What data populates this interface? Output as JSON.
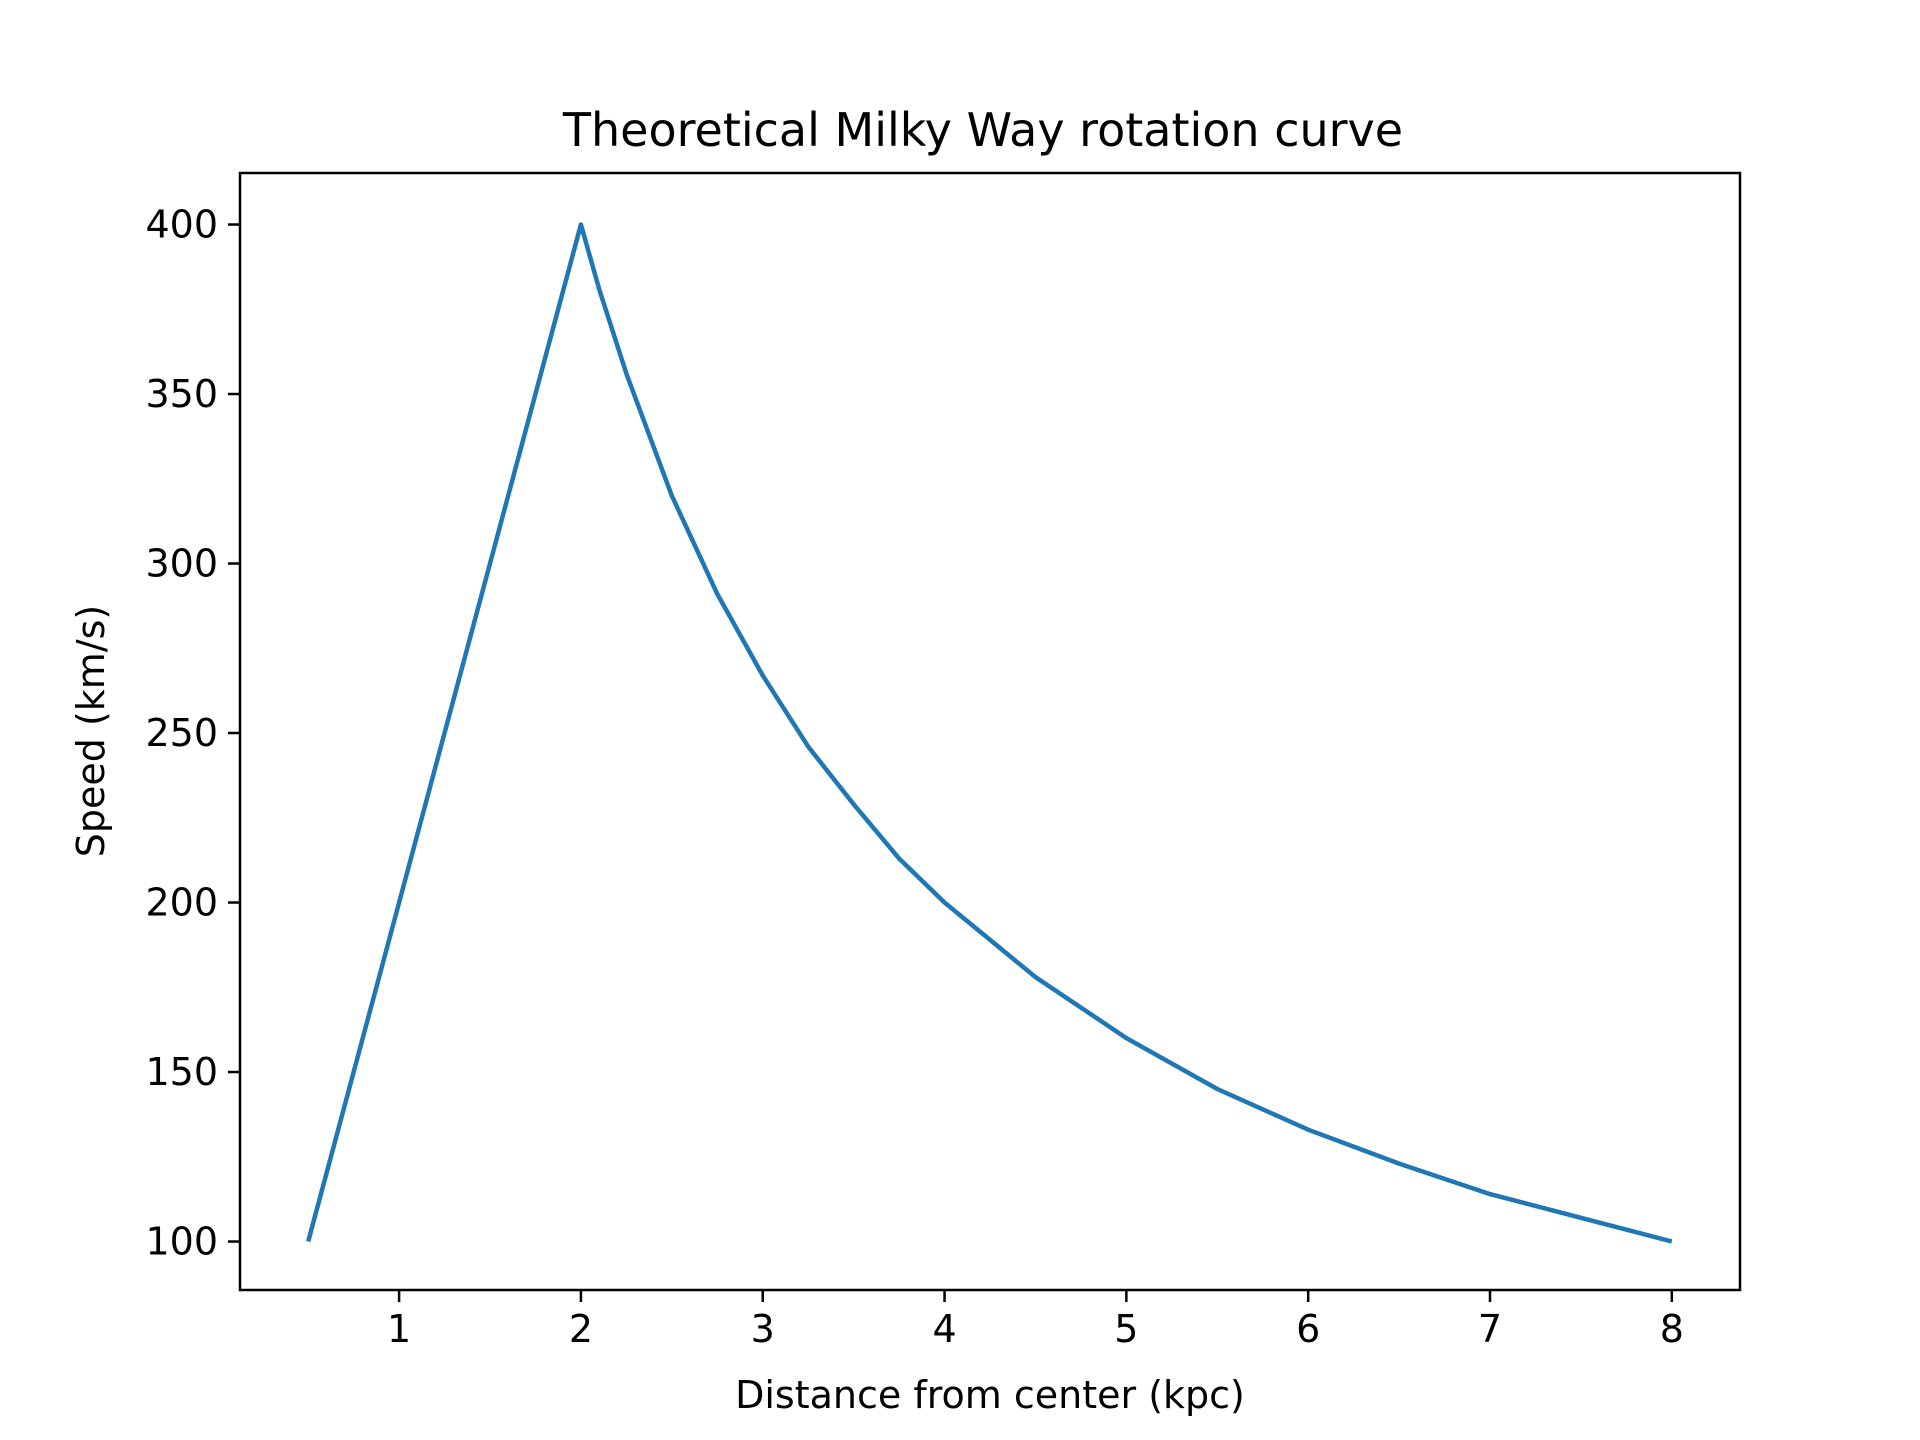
{
  "chart_data": {
    "type": "line",
    "title": "Theoretical Milky Way rotation curve",
    "xlabel": "Distance from center (kpc)",
    "ylabel": "Speed (km/s)",
    "xlim": [
      0.125,
      8.375
    ],
    "ylim": [
      85.7,
      415.2
    ],
    "xticks": [
      1,
      2,
      3,
      4,
      5,
      6,
      7,
      8
    ],
    "xtick_labels": [
      "1",
      "2",
      "3",
      "4",
      "5",
      "6",
      "7",
      "8"
    ],
    "yticks": [
      100,
      150,
      200,
      250,
      300,
      350,
      400
    ],
    "ytick_labels": [
      "100",
      "150",
      "200",
      "250",
      "300",
      "350",
      "400"
    ],
    "grid": false,
    "legend": false,
    "series": [
      {
        "color": "#1f77b4",
        "x": [
          0.5,
          2.0,
          2.1,
          2.25,
          2.5,
          2.75,
          3.0,
          3.25,
          3.5,
          3.75,
          4.0,
          4.5,
          5.0,
          5.5,
          6.0,
          6.5,
          7.0,
          7.5,
          8.0
        ],
        "y": [
          100,
          400,
          381,
          356,
          320,
          291,
          267,
          246,
          229,
          213,
          200,
          178,
          160,
          145,
          133,
          123,
          114,
          107,
          100
        ]
      }
    ]
  }
}
